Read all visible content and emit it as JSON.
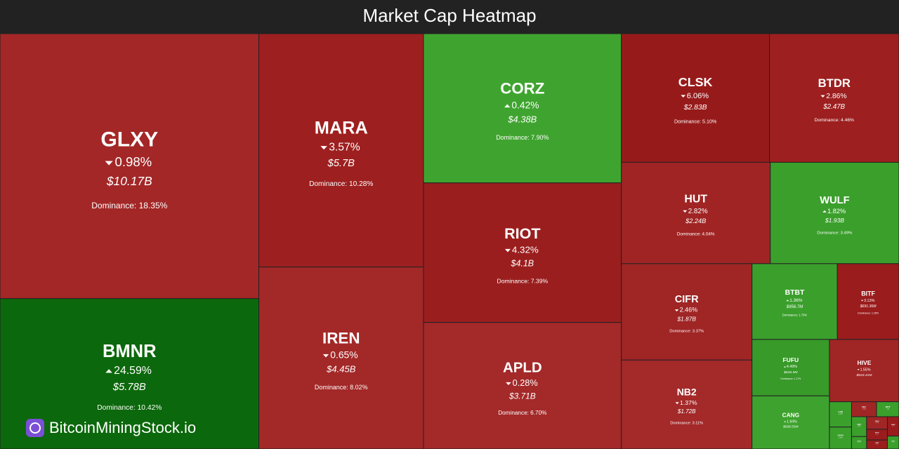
{
  "chart_data": {
    "type": "treemap",
    "title": "Market Cap Heatmap",
    "brand": "BitcoinMiningStock.io",
    "items": [
      {
        "name": "GLXY",
        "change": -0.98,
        "change_label": "0.98%",
        "cap": 10170000000,
        "cap_label": "$10.17B",
        "dominance": 18.35,
        "dominance_label": "Dominance: 18.35%",
        "color": "#a32727"
      },
      {
        "name": "BMNR",
        "change": 24.59,
        "change_label": "24.59%",
        "cap": 5780000000,
        "cap_label": "$5.78B",
        "dominance": 10.42,
        "dominance_label": "Dominance: 10.42%",
        "color": "#0c680c"
      },
      {
        "name": "MARA",
        "change": -3.57,
        "change_label": "3.57%",
        "cap": 5700000000,
        "cap_label": "$5.7B",
        "dominance": 10.28,
        "dominance_label": "Dominance: 10.28%",
        "color": "#9e1f1f"
      },
      {
        "name": "IREN",
        "change": -0.65,
        "change_label": "0.65%",
        "cap": 4450000000,
        "cap_label": "$4.45B",
        "dominance": 8.02,
        "dominance_label": "Dominance: 8.02%",
        "color": "#a32828"
      },
      {
        "name": "CORZ",
        "change": 0.42,
        "change_label": "0.42%",
        "cap": 4380000000,
        "cap_label": "$4.38B",
        "dominance": 7.9,
        "dominance_label": "Dominance: 7.90%",
        "color": "#3fa42f"
      },
      {
        "name": "RIOT",
        "change": -4.32,
        "change_label": "4.32%",
        "cap": 4100000000,
        "cap_label": "$4.1B",
        "dominance": 7.39,
        "dominance_label": "Dominance: 7.39%",
        "color": "#9b1e1e"
      },
      {
        "name": "APLD",
        "change": -0.28,
        "change_label": "0.28%",
        "cap": 3710000000,
        "cap_label": "$3.71B",
        "dominance": 6.7,
        "dominance_label": "Dominance: 6.70%",
        "color": "#a42929"
      },
      {
        "name": "CLSK",
        "change": -6.06,
        "change_label": "6.06%",
        "cap": 2830000000,
        "cap_label": "$2.83B",
        "dominance": 5.1,
        "dominance_label": "Dominance: 5.10%",
        "color": "#971a1a"
      },
      {
        "name": "BTDR",
        "change": -2.86,
        "change_label": "2.86%",
        "cap": 2470000000,
        "cap_label": "$2.47B",
        "dominance": 4.46,
        "dominance_label": "Dominance: 4.46%",
        "color": "#9d1f1f"
      },
      {
        "name": "HUT",
        "change": -2.82,
        "change_label": "2.82%",
        "cap": 2240000000,
        "cap_label": "$2.24B",
        "dominance": 4.04,
        "dominance_label": "Dominance: 4.04%",
        "color": "#a02424"
      },
      {
        "name": "WULF",
        "change": 1.82,
        "change_label": "1.82%",
        "cap": 1930000000,
        "cap_label": "$1.93B",
        "dominance": 3.49,
        "dominance_label": "Dominance: 3.49%",
        "color": "#3b9f2c"
      },
      {
        "name": "CIFR",
        "change": -2.46,
        "change_label": "2.46%",
        "cap": 1870000000,
        "cap_label": "$1.87B",
        "dominance": 3.37,
        "dominance_label": "Dominance: 3.37%",
        "color": "#a02525"
      },
      {
        "name": "NB2",
        "change": -1.37,
        "change_label": "1.37%",
        "cap": 1720000000,
        "cap_label": "$1.72B",
        "dominance": 3.11,
        "dominance_label": "Dominance: 3.11%",
        "color": "#a42929"
      },
      {
        "name": "BTBT",
        "change": 1.36,
        "change_label": "1.36%",
        "cap": 956700000,
        "cap_label": "$956.7M",
        "dominance": 1.73,
        "dominance_label": "Dominance: 1.73%",
        "color": "#3b9f2c"
      },
      {
        "name": "BITF",
        "change": -3.13,
        "change_label": "3.13%",
        "cap": 691360000,
        "cap_label": "$691.36M",
        "dominance": 1.25,
        "dominance_label": "Dominance: 1.25%",
        "color": "#9a1c1c"
      },
      {
        "name": "FUFU",
        "change": 4.49,
        "change_label": "4.49%",
        "cap": 645900000,
        "cap_label": "$645.9M",
        "dominance": 1.17,
        "dominance_label": "Dominance: 1.17%",
        "color": "#389a29"
      },
      {
        "name": "HIVE",
        "change": -1.55,
        "change_label": "1.55%",
        "cap": 643410000,
        "cap_label": "$643.41M",
        "dominance": 1.16,
        "color": "#a02525"
      },
      {
        "name": "CANG",
        "change": 1.94,
        "change_label": "1.94%",
        "cap": 608550000,
        "cap_label": "$608.55M",
        "dominance": 1.1,
        "color": "#3ea32e"
      },
      {
        "name": "CAN",
        "change": 0.26,
        "change_label": "0.26%",
        "dominance": 0.15,
        "color": "#3b9f2c"
      },
      {
        "name": "DGXX",
        "change": 0.66,
        "change_label": "0.66%",
        "dominance": 0.13,
        "color": "#3b9f2c"
      },
      {
        "name": "NDA",
        "change": 0.61,
        "change_label": "0.61%",
        "dominance": 0.1,
        "color": "#a02525"
      },
      {
        "name": "GRYP",
        "change": 1.3,
        "change_label": "1.3%",
        "dominance": 0.09,
        "color": "#3b9f2c"
      },
      {
        "name": "GBIT",
        "change": 3.3,
        "change_label": "3.3%",
        "dominance": 0.08,
        "color": "#3b9f2c"
      },
      {
        "name": "DMGI",
        "change": -1.75,
        "change_label": "1.75%",
        "dominance": 0.07,
        "color": "#a02525"
      },
      {
        "name": "EBON",
        "change": -3.25,
        "change_label": "3.25%",
        "dominance": 0.06,
        "color": "#9a1c1c"
      },
      {
        "name": "ARBK",
        "change": -1.3,
        "change_label": "1.3%",
        "dominance": 0.06,
        "color": "#9a1c1c"
      },
      {
        "name": "BTCM",
        "change": 0.75,
        "change_label": "0.75%",
        "dominance": 0.05,
        "color": "#3b9f2c"
      },
      {
        "name": "GREE",
        "change": -4.13,
        "change_label": "4.13%",
        "dominance": 0.05,
        "color": "#9a1c1c"
      },
      {
        "name": "BTOG",
        "change": 1.4,
        "change_label": "1.4%",
        "dominance": 0.04,
        "color": "#3b9f2c"
      }
    ]
  }
}
